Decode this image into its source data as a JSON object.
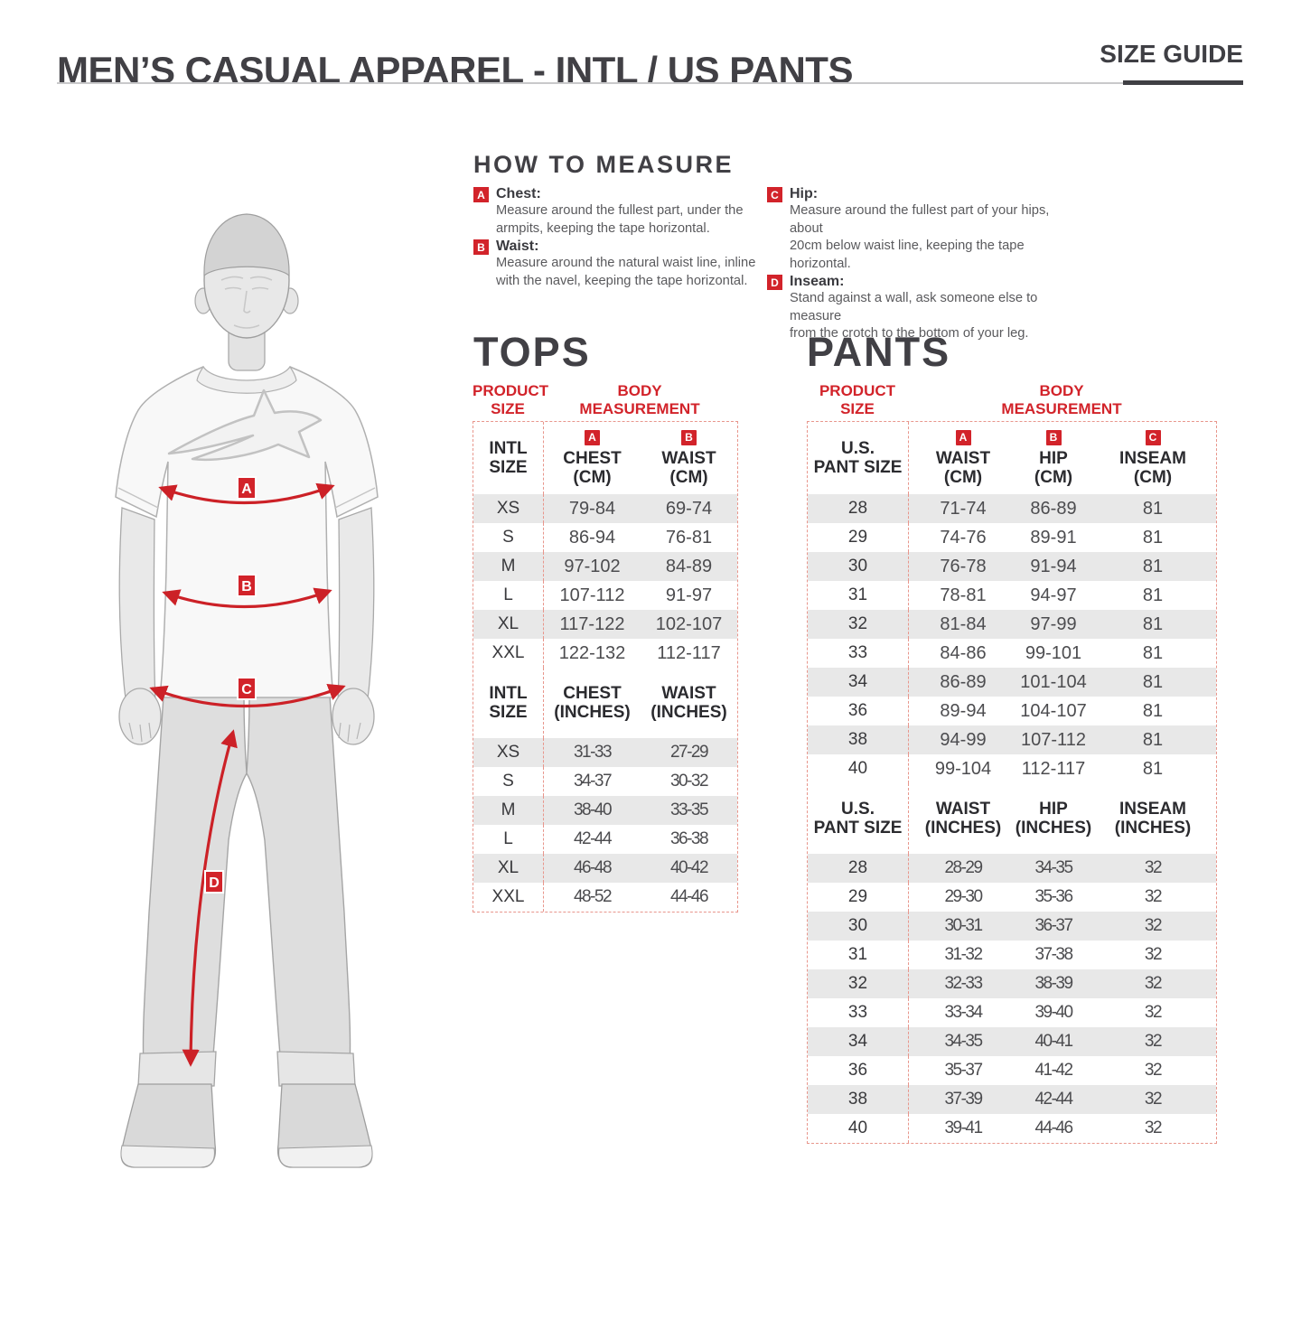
{
  "page": {
    "title": "MEN’S CASUAL APPAREL - INTL / US PANTS",
    "size_guide_label": "SIZE GUIDE"
  },
  "colors": {
    "accent_red": "#d2232a",
    "arrow_red": "#cc2127",
    "dashed_border": "#e8968c",
    "row_shade": "#e8e8e8",
    "heading_dark": "#414045"
  },
  "how_to_measure": {
    "title": "HOW TO MEASURE",
    "items": [
      {
        "badge": "A",
        "label": "Chest:",
        "lines": [
          "Measure around the fullest part, under the",
          "armpits, keeping the tape horizontal."
        ]
      },
      {
        "badge": "B",
        "label": "Waist:",
        "lines": [
          "Measure around the natural waist line, inline",
          "with the navel, keeping the tape horizontal."
        ]
      },
      {
        "badge": "C",
        "label": "Hip:",
        "lines": [
          "Measure around the fullest part of your hips, about",
          "20cm below waist line, keeping the tape horizontal."
        ]
      },
      {
        "badge": "D",
        "label": "Inseam:",
        "lines": [
          "Stand against a wall, ask someone else to measure",
          "from the crotch to the bottom of your leg."
        ]
      }
    ]
  },
  "figure": {
    "markers": [
      "A",
      "B",
      "C",
      "D"
    ]
  },
  "tops": {
    "title": "TOPS",
    "product_size_label": [
      "PRODUCT",
      "SIZE"
    ],
    "body_measurement_label": [
      "BODY",
      "MEASUREMENT"
    ],
    "sections": [
      {
        "size_header": [
          "INTL",
          "SIZE"
        ],
        "columns": [
          {
            "badge": "A",
            "label": [
              "CHEST",
              "(CM)"
            ]
          },
          {
            "badge": "B",
            "label": [
              "WAIST",
              "(CM)"
            ]
          }
        ],
        "rows": [
          {
            "size": "XS",
            "values": [
              "79-84",
              "69-74"
            ]
          },
          {
            "size": "S",
            "values": [
              "86-94",
              "76-81"
            ]
          },
          {
            "size": "M",
            "values": [
              "97-102",
              "84-89"
            ]
          },
          {
            "size": "L",
            "values": [
              "107-112",
              "91-97"
            ]
          },
          {
            "size": "XL",
            "values": [
              "117-122",
              "102-107"
            ]
          },
          {
            "size": "XXL",
            "values": [
              "122-132",
              "112-117"
            ]
          }
        ]
      },
      {
        "size_header": [
          "INTL",
          "SIZE"
        ],
        "condensed": true,
        "columns": [
          {
            "badge": "",
            "label": [
              "CHEST",
              "(INCHES)"
            ]
          },
          {
            "badge": "",
            "label": [
              "WAIST",
              "(INCHES)"
            ]
          }
        ],
        "rows": [
          {
            "size": "XS",
            "values": [
              "31-33",
              "27-29"
            ]
          },
          {
            "size": "S",
            "values": [
              "34-37",
              "30-32"
            ]
          },
          {
            "size": "M",
            "values": [
              "38-40",
              "33-35"
            ]
          },
          {
            "size": "L",
            "values": [
              "42-44",
              "36-38"
            ]
          },
          {
            "size": "XL",
            "values": [
              "46-48",
              "40-42"
            ]
          },
          {
            "size": "XXL",
            "values": [
              "48-52",
              "44-46"
            ]
          }
        ]
      }
    ]
  },
  "pants": {
    "title": "PANTS",
    "product_size_label": [
      "PRODUCT",
      "SIZE"
    ],
    "body_measurement_label": [
      "BODY",
      "MEASUREMENT"
    ],
    "sections": [
      {
        "size_header": [
          "U.S.",
          "PANT SIZE"
        ],
        "columns": [
          {
            "badge": "A",
            "label": [
              "WAIST",
              "(CM)"
            ]
          },
          {
            "badge": "B",
            "label": [
              "HIP",
              "(CM)"
            ]
          },
          {
            "badge": "C",
            "label": [
              "INSEAM",
              "(CM)"
            ]
          }
        ],
        "rows": [
          {
            "size": "28",
            "values": [
              "71-74",
              "86-89",
              "81"
            ]
          },
          {
            "size": "29",
            "values": [
              "74-76",
              "89-91",
              "81"
            ]
          },
          {
            "size": "30",
            "values": [
              "76-78",
              "91-94",
              "81"
            ]
          },
          {
            "size": "31",
            "values": [
              "78-81",
              "94-97",
              "81"
            ]
          },
          {
            "size": "32",
            "values": [
              "81-84",
              "97-99",
              "81"
            ]
          },
          {
            "size": "33",
            "values": [
              "84-86",
              "99-101",
              "81"
            ]
          },
          {
            "size": "34",
            "values": [
              "86-89",
              "101-104",
              "81"
            ]
          },
          {
            "size": "36",
            "values": [
              "89-94",
              "104-107",
              "81"
            ]
          },
          {
            "size": "38",
            "values": [
              "94-99",
              "107-112",
              "81"
            ]
          },
          {
            "size": "40",
            "values": [
              "99-104",
              "112-117",
              "81"
            ]
          }
        ]
      },
      {
        "size_header": [
          "U.S.",
          "PANT SIZE"
        ],
        "condensed": true,
        "columns": [
          {
            "badge": "",
            "label": [
              "WAIST",
              "(INCHES)"
            ]
          },
          {
            "badge": "",
            "label": [
              "HIP",
              "(INCHES)"
            ]
          },
          {
            "badge": "",
            "label": [
              "INSEAM",
              "(INCHES)"
            ]
          }
        ],
        "rows": [
          {
            "size": "28",
            "values": [
              "28-29",
              "34-35",
              "32"
            ]
          },
          {
            "size": "29",
            "values": [
              "29-30",
              "35-36",
              "32"
            ]
          },
          {
            "size": "30",
            "values": [
              "30-31",
              "36-37",
              "32"
            ]
          },
          {
            "size": "31",
            "values": [
              "31-32",
              "37-38",
              "32"
            ]
          },
          {
            "size": "32",
            "values": [
              "32-33",
              "38-39",
              "32"
            ]
          },
          {
            "size": "33",
            "values": [
              "33-34",
              "39-40",
              "32"
            ]
          },
          {
            "size": "34",
            "values": [
              "34-35",
              "40-41",
              "32"
            ]
          },
          {
            "size": "36",
            "values": [
              "35-37",
              "41-42",
              "32"
            ]
          },
          {
            "size": "38",
            "values": [
              "37-39",
              "42-44",
              "32"
            ]
          },
          {
            "size": "40",
            "values": [
              "39-41",
              "44-46",
              "32"
            ]
          }
        ]
      }
    ]
  }
}
